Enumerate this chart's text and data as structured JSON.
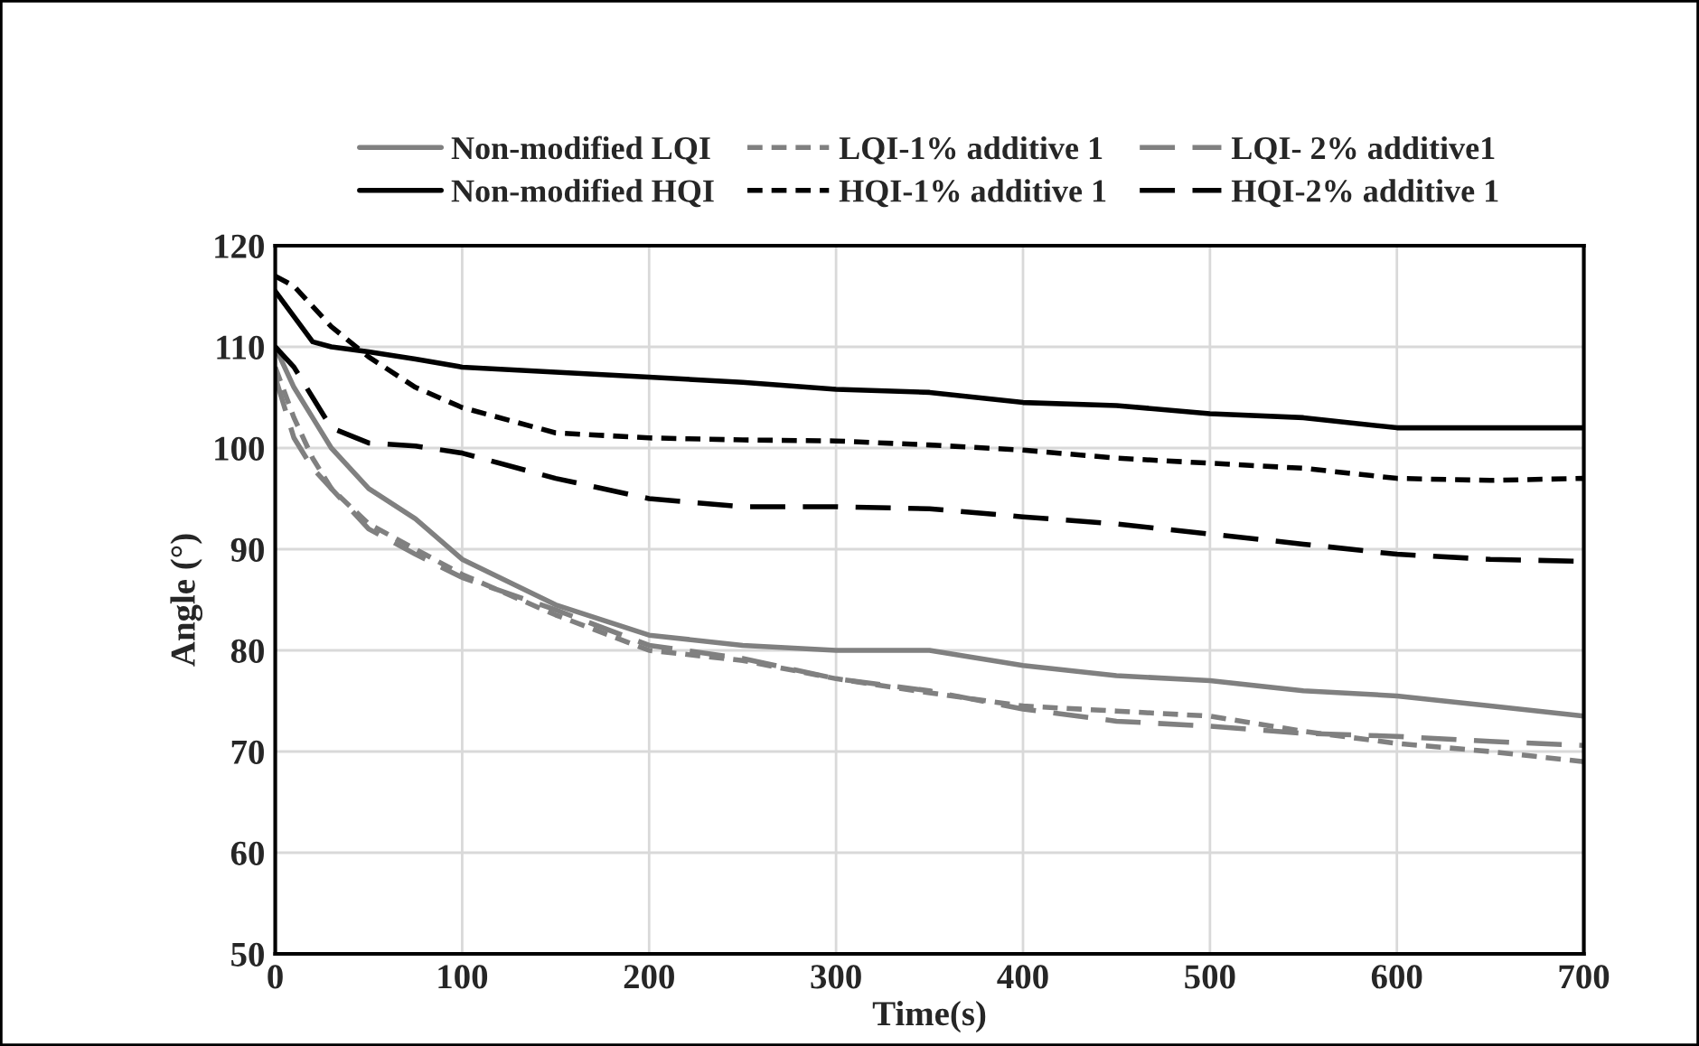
{
  "chart_data": {
    "type": "line",
    "xlabel": "Time(s)",
    "ylabel": "Angle (°)",
    "x": [
      0,
      10,
      20,
      30,
      50,
      75,
      100,
      150,
      200,
      250,
      300,
      350,
      400,
      450,
      500,
      550,
      600,
      650,
      700
    ],
    "xlim": [
      0,
      700
    ],
    "xticks": [
      0,
      100,
      200,
      300,
      400,
      500,
      600,
      700
    ],
    "ylim": [
      50,
      120
    ],
    "yticks": [
      50,
      60,
      70,
      80,
      90,
      100,
      110,
      120
    ],
    "grid": true,
    "legend": "top",
    "marker": "none",
    "series": [
      {
        "name": "Non-modified LQI",
        "color": "#808080",
        "line_style": "solid",
        "values": [
          110,
          106,
          103,
          100,
          96,
          93,
          89,
          84.5,
          81.5,
          80.5,
          80,
          80,
          78.5,
          77.5,
          77,
          76,
          75.5,
          74.5,
          73.5
        ]
      },
      {
        "name": "LQI-1% additive 1",
        "color": "#808080",
        "line_style": "dotted",
        "values": [
          108,
          103,
          99,
          96,
          92.5,
          90,
          87.5,
          83.5,
          80,
          79,
          77.2,
          75.8,
          74.5,
          74,
          73.5,
          72,
          70.8,
          70,
          69
        ]
      },
      {
        "name": "LQI- 2% additive1",
        "color": "#808080",
        "line_style": "dashed",
        "values": [
          107,
          101,
          98,
          96,
          92,
          89.5,
          87.2,
          84,
          80.5,
          79.2,
          77.2,
          76,
          74.2,
          73,
          72.5,
          71.8,
          71.5,
          71,
          70.6
        ]
      },
      {
        "name": "Non-modified HQI",
        "color": "#000000",
        "line_style": "solid",
        "values": [
          115.5,
          113,
          110.5,
          110,
          109.5,
          108.8,
          108,
          107.5,
          107,
          106.5,
          105.8,
          105.5,
          104.5,
          104.2,
          103.4,
          103,
          102,
          102,
          102
        ]
      },
      {
        "name": "HQI-1% additive 1",
        "color": "#000000",
        "line_style": "dotted",
        "values": [
          117,
          116,
          114,
          112,
          109,
          106,
          104,
          101.5,
          101,
          100.8,
          100.7,
          100.3,
          99.8,
          99,
          98.5,
          98,
          97,
          96.8,
          97
        ]
      },
      {
        "name": "HQI-2% additive 1",
        "color": "#000000",
        "line_style": "dashed",
        "values": [
          110,
          108,
          105,
          102,
          100.5,
          100.2,
          99.5,
          97,
          95,
          94.2,
          94.2,
          94,
          93.2,
          92.5,
          91.5,
          90.5,
          89.5,
          89,
          88.8
        ]
      }
    ]
  }
}
